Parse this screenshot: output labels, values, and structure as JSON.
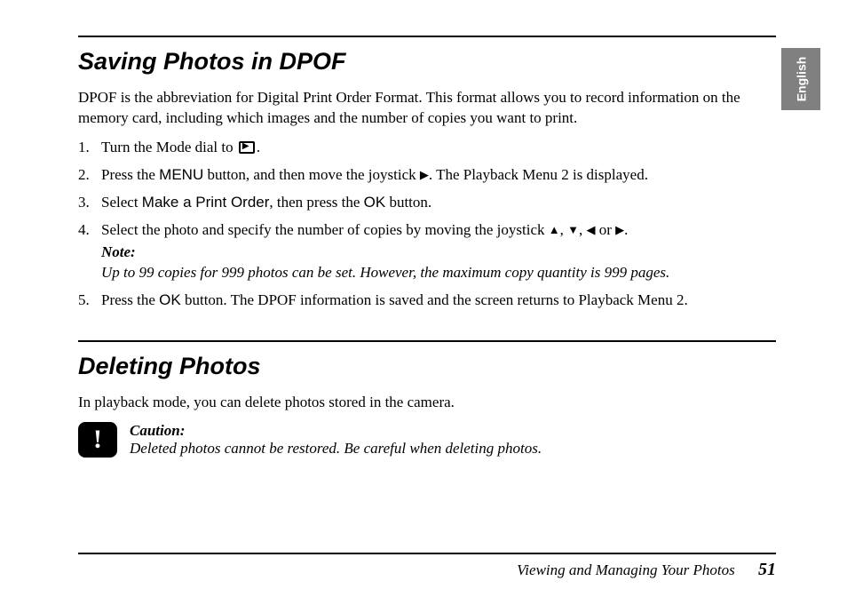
{
  "language_tab": "English",
  "section1": {
    "title": "Saving Photos in DPOF",
    "intro": "DPOF is the abbreviation for Digital Print Order Format. This format allows you to record information on the memory card, including which images and the number of copies you want to print.",
    "steps": {
      "s1_a": "Turn the Mode dial to ",
      "s1_b": ".",
      "s2_a": "Press the ",
      "s2_menu": "MENU",
      "s2_b": " button, and then move the joystick ",
      "s2_c": ". The Playback Menu 2 is displayed.",
      "s3_a": "Select ",
      "s3_cmd": "Make a Print Order",
      "s3_b": ", then press the ",
      "s3_ok": "OK",
      "s3_c": " button.",
      "s4_a": "Select the photo and specify the number of copies by moving the joystick ",
      "s4_sep1": ", ",
      "s4_sep2": ", ",
      "s4_or": " or ",
      "s4_end": ".",
      "s4_note_title": "Note:",
      "s4_note_text": "Up to 99 copies for 999 photos can be set. However, the maximum copy quantity is 999 pages.",
      "s5_a": "Press the ",
      "s5_ok": "OK",
      "s5_b": " button. The DPOF information is saved and the screen returns to Playback Menu 2."
    }
  },
  "section2": {
    "title": "Deleting Photos",
    "intro": "In playback mode, you can delete photos stored in the camera.",
    "caution_title": "Caution:",
    "caution_text": "Deleted photos cannot be restored. Be careful when deleting photos."
  },
  "footer": {
    "chapter": "Viewing and Managing Your Photos",
    "page": "51"
  },
  "glyphs": {
    "up": "▲",
    "down": "▼",
    "left": "◀",
    "right": "▶"
  }
}
